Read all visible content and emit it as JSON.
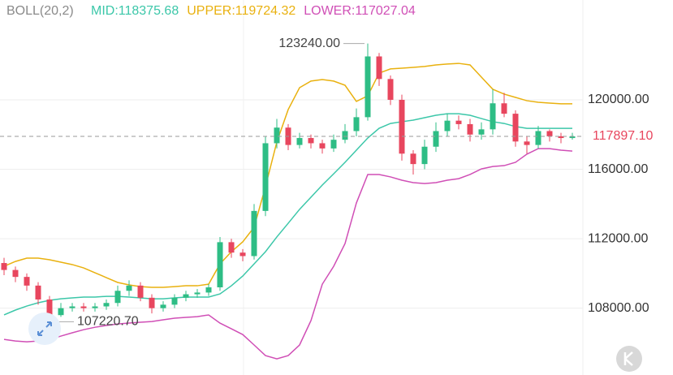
{
  "chart_data": {
    "type": "candlestick",
    "indicator": "BOLL(20,2)",
    "bands": [
      {
        "label": "MID:118375.68",
        "color": "#3cc7a9",
        "values": [
          107610,
          107890,
          108120,
          108310,
          108450,
          108540,
          108590,
          108640,
          108640,
          108680,
          108680,
          108640,
          108590,
          108540,
          108540,
          108590,
          108640,
          108640,
          108640,
          108820,
          109290,
          109850,
          110550,
          111250,
          112100,
          112890,
          113690,
          114390,
          115090,
          115740,
          116400,
          117100,
          117800,
          118360,
          118640,
          118740,
          118830,
          118970,
          119110,
          119200,
          119200,
          119110,
          118920,
          118740,
          118640,
          118460,
          118360,
          118360,
          118360,
          118360,
          118360
        ]
      },
      {
        "label": "UPPER:119724.32",
        "color": "#e9b10f",
        "values": [
          110410,
          110690,
          110880,
          110880,
          110790,
          110650,
          110510,
          110320,
          110040,
          109760,
          109480,
          109340,
          109240,
          109200,
          109200,
          109240,
          109290,
          109290,
          109380,
          110550,
          111250,
          111820,
          112660,
          115000,
          117570,
          119440,
          120700,
          121080,
          121170,
          121080,
          120840,
          119910,
          120230,
          121540,
          121780,
          121820,
          121870,
          121920,
          122010,
          122060,
          122100,
          122010,
          121310,
          120610,
          120330,
          120140,
          119950,
          119860,
          119810,
          119770,
          119770
        ]
      },
      {
        "label": "LOWER:117027.04",
        "color": "#d04fb6",
        "values": [
          106200,
          106110,
          106060,
          106110,
          106200,
          106390,
          106580,
          106760,
          106900,
          107000,
          107090,
          107140,
          107190,
          107230,
          107330,
          107420,
          107470,
          107510,
          107610,
          107140,
          106810,
          106480,
          105880,
          105270,
          105080,
          105270,
          105880,
          107280,
          109380,
          110410,
          111720,
          114060,
          115700,
          115700,
          115560,
          115370,
          115230,
          115180,
          115230,
          115370,
          115460,
          115700,
          116020,
          116160,
          116210,
          116400,
          116870,
          117190,
          117190,
          117100,
          117050
        ]
      }
    ],
    "open": [
      110600,
      110200,
      109800,
      109300,
      108500,
      107600,
      108000,
      108100,
      108000,
      108100,
      108300,
      109000,
      109300,
      108600,
      108000,
      108200,
      108600,
      108800,
      108900,
      109200,
      111800,
      111200,
      111000,
      113600,
      117500,
      118400,
      117400,
      117800,
      117500,
      117200,
      117700,
      118200,
      119000,
      122500,
      121200,
      120000,
      116900,
      116300,
      117300,
      118200,
      118800,
      118600,
      118000,
      118300,
      119800,
      119200,
      117600,
      117400,
      118200,
      117900,
      117800
    ],
    "high": [
      110900,
      110400,
      110000,
      109500,
      108700,
      108300,
      108300,
      108300,
      108300,
      108500,
      109300,
      109600,
      109500,
      108800,
      108400,
      108800,
      109000,
      109100,
      109400,
      112100,
      112000,
      111400,
      114000,
      117900,
      118900,
      118600,
      118100,
      118000,
      117700,
      118000,
      118600,
      119500,
      123240,
      122700,
      121400,
      120300,
      117100,
      117700,
      118700,
      119200,
      119100,
      118900,
      118700,
      120600,
      120400,
      119400,
      117900,
      118500,
      118300,
      118100,
      118100
    ],
    "low": [
      109900,
      109500,
      109000,
      108200,
      107220.7,
      107500,
      107800,
      107800,
      107800,
      107900,
      108100,
      108700,
      108400,
      107700,
      107800,
      108000,
      108400,
      108600,
      108700,
      109000,
      110900,
      110700,
      110800,
      113300,
      117200,
      117100,
      117200,
      117200,
      116900,
      117000,
      117500,
      117900,
      118800,
      120800,
      119700,
      116500,
      115700,
      116000,
      117000,
      117900,
      118300,
      117600,
      117700,
      118000,
      119000,
      117300,
      116900,
      117200,
      117600,
      117500,
      117700
    ],
    "close": [
      110200,
      109800,
      109300,
      108500,
      107600,
      108000,
      108100,
      108000,
      108100,
      108300,
      109000,
      109300,
      108600,
      108000,
      108200,
      108600,
      108800,
      108900,
      109200,
      111800,
      111200,
      111000,
      113600,
      117500,
      118400,
      117400,
      117800,
      117500,
      117200,
      117700,
      118200,
      119000,
      122500,
      121200,
      120000,
      116900,
      116300,
      117300,
      118200,
      118800,
      118600,
      118000,
      118300,
      119800,
      119200,
      117600,
      117400,
      118200,
      117900,
      117800,
      117897.1
    ],
    "up_color": "#2ebd85",
    "down_color": "#e8465e",
    "ylim": [
      104150,
      125750
    ],
    "yticks": [
      {
        "value": 108000,
        "label": "108000.00"
      },
      {
        "value": 112000,
        "label": "112000.00"
      },
      {
        "value": 116000,
        "label": "116000.00"
      },
      {
        "value": 120000,
        "label": "120000.00"
      }
    ],
    "grid": true,
    "max_marker": {
      "value": 123240,
      "label": "123240.00"
    },
    "min_marker": {
      "value": 107220.7,
      "label": "107220.70"
    },
    "last_price": {
      "value": 117897.1,
      "label": "117897.10",
      "color": "#e8465e"
    }
  }
}
